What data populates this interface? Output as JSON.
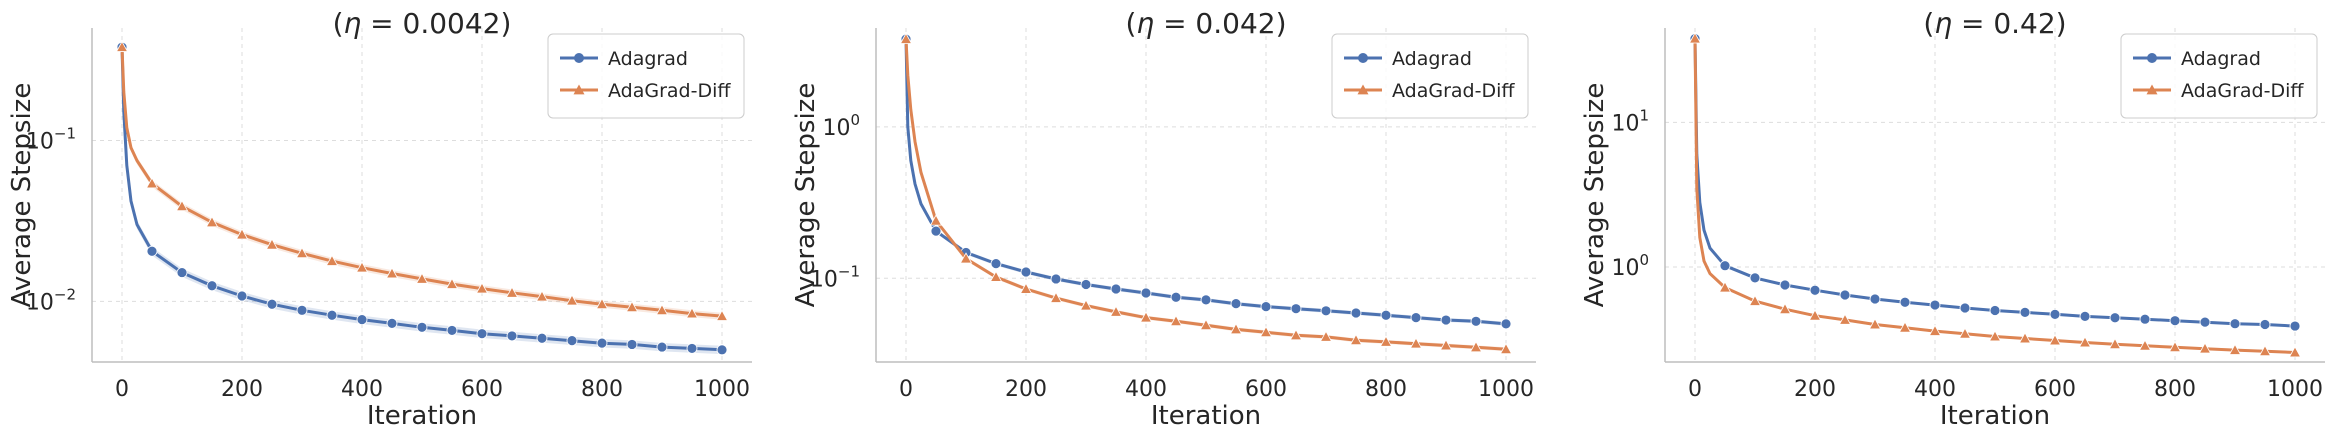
{
  "chart_data": [
    {
      "type": "line",
      "title_eta": "η",
      "title_value": " = 0.0042)",
      "title_prefix": "(",
      "xlabel": "Iteration",
      "ylabel": "Average Stepsize",
      "yscale": "log",
      "xlim": [
        -50,
        1050
      ],
      "ylim": [
        0.0042,
        0.5
      ],
      "x_ticks": [
        0,
        200,
        400,
        600,
        800,
        1000
      ],
      "x_tick_labels": [
        "0",
        "200",
        "400",
        "600",
        "800",
        "1000"
      ],
      "y_ticks": [
        0.01,
        0.1
      ],
      "y_tick_labels": [
        {
          "base": "10",
          "exp": "−2"
        },
        {
          "base": "10",
          "exp": "−1"
        }
      ],
      "legend": [
        "Adagrad",
        "AdaGrad-Diff"
      ],
      "series": [
        {
          "name": "Adagrad",
          "color": "#4c72b0",
          "marker": "circle",
          "x": [
            0,
            3,
            8,
            15,
            25,
            50,
            100,
            150,
            200,
            250,
            300,
            350,
            400,
            450,
            500,
            550,
            600,
            650,
            700,
            750,
            800,
            850,
            900,
            950,
            1000
          ],
          "y": [
            0.38,
            0.15,
            0.07,
            0.042,
            0.03,
            0.0205,
            0.0151,
            0.0125,
            0.0108,
            0.0096,
            0.0088,
            0.0082,
            0.0077,
            0.0073,
            0.0069,
            0.0066,
            0.0063,
            0.0061,
            0.0059,
            0.0057,
            0.0055,
            0.0054,
            0.0052,
            0.0051,
            0.005
          ],
          "band_lower": 0.94,
          "band_upper": 1.06
        },
        {
          "name": "AdaGrad-Diff",
          "color": "#dd8452",
          "marker": "triangle",
          "x": [
            0,
            3,
            8,
            15,
            25,
            50,
            100,
            150,
            200,
            250,
            300,
            350,
            400,
            450,
            500,
            550,
            600,
            650,
            700,
            750,
            800,
            850,
            900,
            950,
            1000
          ],
          "y": [
            0.38,
            0.2,
            0.12,
            0.09,
            0.075,
            0.054,
            0.039,
            0.031,
            0.026,
            0.0225,
            0.0199,
            0.0178,
            0.0162,
            0.0149,
            0.0138,
            0.0128,
            0.012,
            0.0113,
            0.0107,
            0.0101,
            0.0096,
            0.0092,
            0.0088,
            0.0084,
            0.0081
          ],
          "band_lower": 0.95,
          "band_upper": 1.05
        }
      ]
    },
    {
      "type": "line",
      "title_eta": "η",
      "title_value": " = 0.042)",
      "title_prefix": "(",
      "xlabel": "Iteration",
      "ylabel": "Average Stepsize",
      "yscale": "log",
      "xlim": [
        -50,
        1050
      ],
      "ylim": [
        0.028,
        4.5
      ],
      "x_ticks": [
        0,
        200,
        400,
        600,
        800,
        1000
      ],
      "x_tick_labels": [
        "0",
        "200",
        "400",
        "600",
        "800",
        "1000"
      ],
      "y_ticks": [
        0.1,
        1
      ],
      "y_tick_labels": [
        {
          "base": "10",
          "exp": "−1"
        },
        {
          "base": "10",
          "exp": "0"
        }
      ],
      "legend": [
        "Adagrad",
        "AdaGrad-Diff"
      ],
      "series": [
        {
          "name": "Adagrad",
          "color": "#4c72b0",
          "marker": "circle",
          "x": [
            0,
            3,
            8,
            15,
            25,
            50,
            100,
            150,
            200,
            250,
            300,
            350,
            400,
            450,
            500,
            550,
            600,
            650,
            700,
            750,
            800,
            850,
            900,
            950,
            1000
          ],
          "y": [
            3.8,
            1.0,
            0.6,
            0.42,
            0.31,
            0.205,
            0.148,
            0.125,
            0.11,
            0.099,
            0.091,
            0.085,
            0.08,
            0.075,
            0.072,
            0.068,
            0.065,
            0.063,
            0.061,
            0.059,
            0.057,
            0.055,
            0.053,
            0.052,
            0.05
          ],
          "band_lower": 0.97,
          "band_upper": 1.03
        },
        {
          "name": "AdaGrad-Diff",
          "color": "#dd8452",
          "marker": "triangle",
          "x": [
            0,
            3,
            8,
            15,
            25,
            50,
            100,
            150,
            200,
            250,
            300,
            350,
            400,
            450,
            500,
            550,
            600,
            650,
            700,
            750,
            800,
            850,
            900,
            950,
            1000
          ],
          "y": [
            3.8,
            2.2,
            1.3,
            0.8,
            0.5,
            0.24,
            0.135,
            0.102,
            0.085,
            0.074,
            0.066,
            0.06,
            0.055,
            0.052,
            0.049,
            0.046,
            0.044,
            0.042,
            0.041,
            0.039,
            0.038,
            0.037,
            0.036,
            0.035,
            0.034
          ],
          "band_lower": 0.97,
          "band_upper": 1.03
        }
      ]
    },
    {
      "type": "line",
      "title_eta": "η",
      "title_value": " = 0.42)",
      "title_prefix": "(",
      "xlabel": "Iteration",
      "ylabel": "Average Stepsize",
      "yscale": "log",
      "xlim": [
        -50,
        1050
      ],
      "ylim": [
        0.22,
        45
      ],
      "x_ticks": [
        0,
        200,
        400,
        600,
        800,
        1000
      ],
      "x_tick_labels": [
        "0",
        "200",
        "400",
        "600",
        "800",
        "1000"
      ],
      "y_ticks": [
        1,
        10
      ],
      "y_tick_labels": [
        {
          "base": "10",
          "exp": "0"
        },
        {
          "base": "10",
          "exp": "1"
        }
      ],
      "legend": [
        "Adagrad",
        "AdaGrad-Diff"
      ],
      "series": [
        {
          "name": "Adagrad",
          "color": "#4c72b0",
          "marker": "circle",
          "x": [
            0,
            3,
            8,
            15,
            25,
            50,
            100,
            150,
            200,
            250,
            300,
            350,
            400,
            450,
            500,
            550,
            600,
            650,
            700,
            750,
            800,
            850,
            900,
            950,
            1000
          ],
          "y": [
            38,
            6,
            2.8,
            1.8,
            1.35,
            1.02,
            0.84,
            0.75,
            0.69,
            0.64,
            0.6,
            0.57,
            0.545,
            0.52,
            0.5,
            0.485,
            0.47,
            0.455,
            0.445,
            0.435,
            0.425,
            0.415,
            0.405,
            0.4,
            0.39
          ],
          "band_lower": 0.98,
          "band_upper": 1.02
        },
        {
          "name": "AdaGrad-Diff",
          "color": "#dd8452",
          "marker": "triangle",
          "x": [
            0,
            3,
            8,
            15,
            25,
            50,
            100,
            150,
            200,
            250,
            300,
            350,
            400,
            450,
            500,
            550,
            600,
            650,
            700,
            750,
            800,
            850,
            900,
            950,
            1000
          ],
          "y": [
            38,
            3.5,
            1.6,
            1.1,
            0.9,
            0.72,
            0.58,
            0.51,
            0.46,
            0.43,
            0.4,
            0.38,
            0.36,
            0.345,
            0.33,
            0.32,
            0.31,
            0.3,
            0.292,
            0.285,
            0.278,
            0.272,
            0.266,
            0.261,
            0.256
          ],
          "band_lower": 0.98,
          "band_upper": 1.02
        }
      ]
    }
  ]
}
